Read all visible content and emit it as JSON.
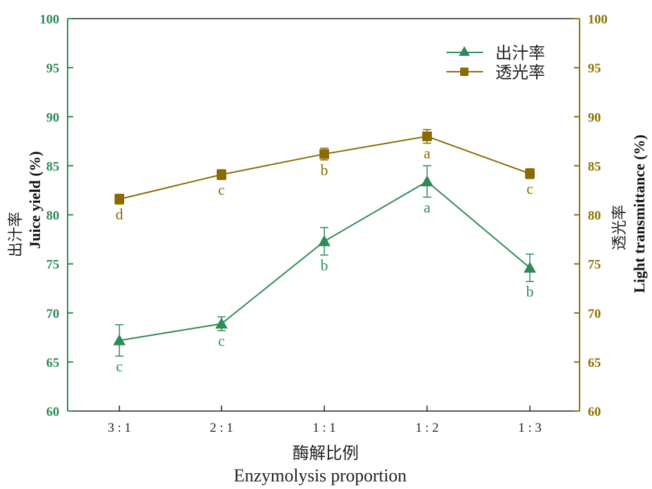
{
  "chart_data": {
    "type": "line",
    "categories": [
      "3 : 1",
      "2 : 1",
      "1 : 1",
      "1 : 2",
      "1 : 3"
    ],
    "xlabel_cn": "酶解比例",
    "xlabel": "Enzymolysis proportion",
    "ylabel_left_cn": "出汁率",
    "ylabel_left": "Juice yield (%)",
    "ylabel_right_cn": "透光率",
    "ylabel_right": "Light transmittance (%)",
    "ylim": [
      60,
      100
    ],
    "yticks": [
      60,
      65,
      70,
      75,
      80,
      85,
      90,
      95,
      100
    ],
    "legend_position": "top-right",
    "colors": {
      "left_axis": "#2e8b57",
      "right_axis": "#8b7500"
    },
    "series": [
      {
        "name": "出汁率",
        "axis": "left",
        "marker": "triangle",
        "color": "#2e8b57",
        "values": [
          67.2,
          68.9,
          77.3,
          83.4,
          74.6
        ],
        "errors": [
          1.6,
          0.7,
          1.4,
          1.6,
          1.4
        ],
        "letters": [
          "c",
          "c",
          "b",
          "a",
          "b"
        ]
      },
      {
        "name": "透光率",
        "axis": "right",
        "marker": "square",
        "color": "#8b6a00",
        "values": [
          81.6,
          84.1,
          86.2,
          88.0,
          84.2
        ],
        "errors": [
          0.5,
          0.5,
          0.6,
          0.7,
          0.5
        ],
        "letters": [
          "d",
          "c",
          "b",
          "a",
          "c"
        ]
      }
    ]
  }
}
